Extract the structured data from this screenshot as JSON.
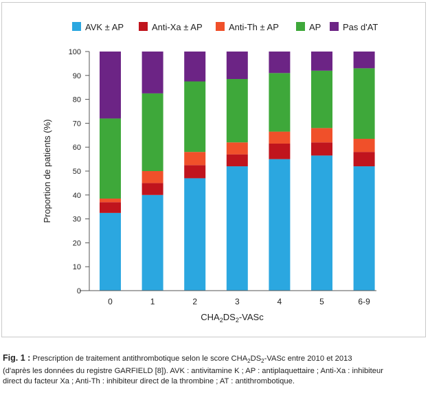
{
  "chart_data": {
    "type": "bar",
    "stacked": true,
    "categories": [
      "0",
      "1",
      "2",
      "3",
      "4",
      "5",
      "6-9"
    ],
    "series": [
      {
        "name": "AVK ± AP",
        "color": "#2ba7e0",
        "values": [
          32.5,
          40,
          47,
          52,
          55,
          56.5,
          52
        ]
      },
      {
        "name": "Anti-Xa ± AP",
        "color": "#c0141d",
        "values": [
          4.5,
          5,
          5.5,
          5,
          6.5,
          5.5,
          6
        ]
      },
      {
        "name": "Anti-Th ± AP",
        "color": "#f0502a",
        "values": [
          1.5,
          5,
          5.5,
          5,
          5,
          6,
          5.5
        ]
      },
      {
        "name": "AP",
        "color": "#3ea83a",
        "values": [
          33.5,
          32.5,
          29.5,
          26.5,
          24.5,
          24,
          29.5
        ]
      },
      {
        "name": "Pas d'AT",
        "color": "#6c2485",
        "values": [
          28,
          17.5,
          12.5,
          11.5,
          9,
          8,
          7
        ]
      }
    ],
    "yticks": [
      0,
      10,
      20,
      30,
      40,
      50,
      60,
      70,
      80,
      90,
      100
    ],
    "ylim": [
      0,
      100
    ],
    "ylabel": "Proportion de patients (%)",
    "xlabel": {
      "main": "CHA",
      "s1": "2",
      "mid": "DS",
      "s2": "2",
      "end": "-VASc"
    },
    "legend_position": "top",
    "grid": false
  },
  "caption": {
    "label": "Fig. 1 :",
    "l1a": "Prescription de traitement antithrombotique selon le score CHA",
    "l1s1": "2",
    "l1b": "DS",
    "l1s2": "2",
    "l1c": "-VASc entre 2010 et 2013",
    "l2": "(d'après les données du registre GARFIELD [8]). AVK : antivitamine K ; AP : antiplaquettaire ; Anti-Xa : inhibiteur",
    "l3": "direct du facteur Xa ; Anti-Th : inhibiteur direct de la thrombine ; AT : antithrombotique."
  }
}
